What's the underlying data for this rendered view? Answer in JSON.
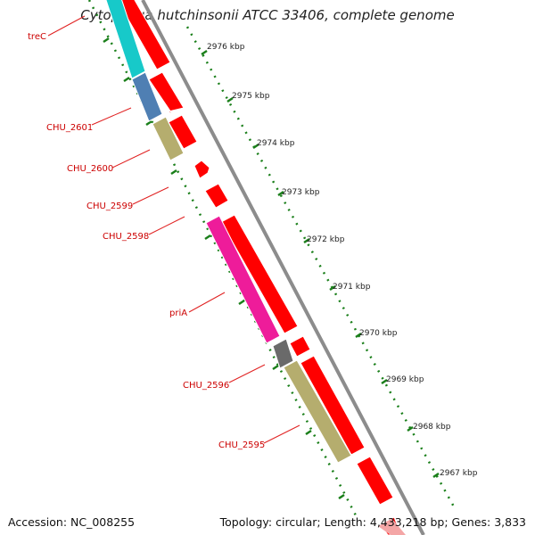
{
  "title": "Cytophaga hutchinsonii ATCC 33406, complete genome",
  "accession": "Accession: NC_008255",
  "stats": "Topology: circular; Length: 4,433,218 bp; Genes: 3,833",
  "colors": {
    "backbone": "#8c8c8c",
    "ticks": "#1a7f1a",
    "label_line": "#e02020",
    "label_text": "#cc0000",
    "forward_cds": "#ff0000",
    "cyan": "#17c9c9",
    "steel_blue": "#4f7fb3",
    "khaki": "#b5ad6e",
    "magenta": "#ee1c9a",
    "dark_grey": "#6a6a6a"
  },
  "kbp_labels": [
    "2976 kbp",
    "2975 kbp",
    "2974 kbp",
    "2973 kbp",
    "2972 kbp",
    "2971 kbp",
    "2970 kbp",
    "2969 kbp",
    "2968 kbp",
    "2967 kbp"
  ],
  "gene_labels": [
    "treC",
    "CHU_2601",
    "CHU_2600",
    "CHU_2599",
    "CHU_2598",
    "priA",
    "CHU_2596",
    "CHU_2595"
  ]
}
